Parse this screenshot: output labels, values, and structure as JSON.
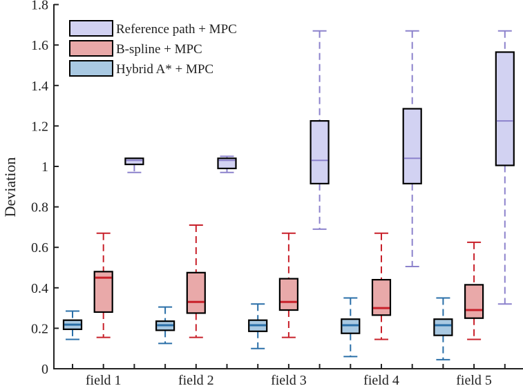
{
  "chart_data": {
    "type": "box",
    "title": "",
    "xlabel": "",
    "ylabel": "Deviation",
    "ylim": [
      0,
      1.8
    ],
    "yticks": [
      "0",
      "0.2",
      "0.4",
      "0.6",
      "0.8",
      "1",
      "1.2",
      "1.4",
      "1.6",
      "1.8"
    ],
    "categories": [
      "field 1",
      "field 2",
      "field 3",
      "field 4",
      "field 5"
    ],
    "legend_placement": "top-left",
    "grid": false,
    "series": [
      {
        "name": "Hybrid A* + MPC",
        "fill": "#a9c9e2",
        "line": "#2a6fa8",
        "boxes": [
          {
            "min": 0.145,
            "q1": 0.195,
            "median": 0.218,
            "q3": 0.24,
            "max": 0.285
          },
          {
            "min": 0.125,
            "q1": 0.19,
            "median": 0.215,
            "q3": 0.235,
            "max": 0.305
          },
          {
            "min": 0.1,
            "q1": 0.185,
            "median": 0.215,
            "q3": 0.24,
            "max": 0.32
          },
          {
            "min": 0.06,
            "q1": 0.175,
            "median": 0.215,
            "q3": 0.245,
            "max": 0.35
          },
          {
            "min": 0.045,
            "q1": 0.165,
            "median": 0.215,
            "q3": 0.245,
            "max": 0.35
          }
        ]
      },
      {
        "name": "B-spline + MPC",
        "fill": "#e9a9a9",
        "line": "#c8202a",
        "boxes": [
          {
            "min": 0.155,
            "q1": 0.28,
            "median": 0.45,
            "q3": 0.48,
            "max": 0.67
          },
          {
            "min": 0.155,
            "q1": 0.275,
            "median": 0.33,
            "q3": 0.475,
            "max": 0.71
          },
          {
            "min": 0.155,
            "q1": 0.29,
            "median": 0.33,
            "q3": 0.445,
            "max": 0.67
          },
          {
            "min": 0.145,
            "q1": 0.265,
            "median": 0.3,
            "q3": 0.44,
            "max": 0.67
          },
          {
            "min": 0.145,
            "q1": 0.25,
            "median": 0.29,
            "q3": 0.415,
            "max": 0.625
          }
        ]
      },
      {
        "name": "Reference path + MPC",
        "fill": "#d2d2f2",
        "line": "#8c82cc",
        "boxes": [
          {
            "min": 0.97,
            "q1": 1.01,
            "median": 1.03,
            "q3": 1.04,
            "max": 1.04
          },
          {
            "min": 0.97,
            "q1": 0.99,
            "median": 1.03,
            "q3": 1.04,
            "max": 1.05
          },
          {
            "min": 0.69,
            "q1": 0.915,
            "median": 1.03,
            "q3": 1.225,
            "max": 1.67
          },
          {
            "min": 0.505,
            "q1": 0.915,
            "median": 1.04,
            "q3": 1.285,
            "max": 1.67
          },
          {
            "min": 0.32,
            "q1": 1.005,
            "median": 1.225,
            "q3": 1.565,
            "max": 1.67
          }
        ]
      }
    ],
    "legend_order": [
      "Reference path + MPC",
      "B-spline + MPC",
      "Hybrid A* + MPC"
    ]
  }
}
